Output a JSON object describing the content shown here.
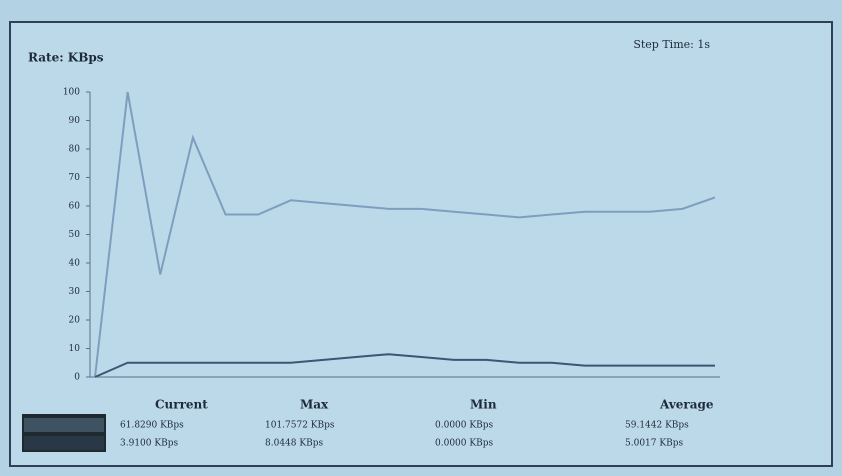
{
  "chart_data": {
    "type": "line",
    "title": "Rate: KBps",
    "subtitle": "Step Time: 1s",
    "ylim": [
      0,
      100
    ],
    "yticks": [
      0,
      10,
      20,
      30,
      40,
      50,
      60,
      70,
      80,
      90,
      100
    ],
    "grid": false,
    "series": [
      {
        "color": "#7f9dbf",
        "values": [
          0,
          100,
          36,
          84,
          57,
          57,
          62,
          61,
          60,
          59,
          59,
          58,
          57,
          56,
          57,
          58,
          58,
          58,
          59,
          63
        ]
      },
      {
        "color": "#3f5473",
        "values": [
          0,
          5,
          5,
          5,
          5,
          5,
          5,
          6,
          7,
          8,
          7,
          6,
          6,
          5,
          5,
          4,
          4,
          4,
          4,
          4
        ]
      }
    ]
  },
  "stats": {
    "headers": [
      "Current",
      "Max",
      "Min",
      "Average"
    ],
    "rows": [
      [
        "61.8290 KBps",
        "101.7572 KBps",
        "0.0000 KBps",
        "59.1442 KBps"
      ],
      [
        "3.9100 KBps",
        "8.0448 KBps",
        "0.0000 KBps",
        "5.0017 KBps"
      ]
    ]
  }
}
